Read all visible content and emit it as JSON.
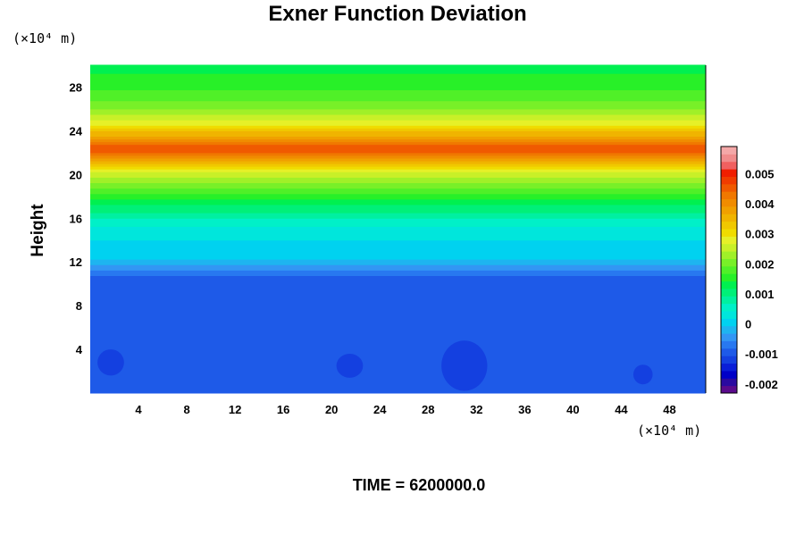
{
  "chart_data": {
    "type": "heatmap",
    "title": "Exner Function Deviation",
    "xlabel": "",
    "ylabel": "Height",
    "x_unit": "(×10⁴ m)",
    "y_unit": "(×10⁴ m)",
    "xlim": [
      0,
      51
    ],
    "ylim": [
      0,
      30
    ],
    "x_ticks": [
      "4",
      "8",
      "12",
      "16",
      "20",
      "24",
      "28",
      "32",
      "36",
      "40",
      "44",
      "48"
    ],
    "y_ticks": [
      "4",
      "8",
      "12",
      "16",
      "20",
      "24",
      "28"
    ],
    "colorbar": {
      "ticks": [
        "0.005",
        "0.004",
        "0.003",
        "0.002",
        "0.001",
        "0",
        "-0.001",
        "-0.002"
      ],
      "range": [
        -0.0023,
        0.0059
      ],
      "colors": [
        "#5a0a8c",
        "#2a0aa0",
        "#0000c8",
        "#0a1ed8",
        "#1440e0",
        "#1e5ae8",
        "#2878f0",
        "#3296f4",
        "#1eb4f0",
        "#00d2f0",
        "#00e6dc",
        "#00f0c8",
        "#00f0a0",
        "#00f078",
        "#00f050",
        "#28f028",
        "#50f028",
        "#78f028",
        "#a0f028",
        "#c8f028",
        "#e6f028",
        "#f0dc00",
        "#f0c800",
        "#f0b400",
        "#f0a000",
        "#f08c00",
        "#f07800",
        "#f05a00",
        "#f03c00",
        "#f01e00",
        "#f06060",
        "#f08c8c",
        "#f4a8a8"
      ]
    },
    "vertical_profile": [
      {
        "y": 0,
        "value": -0.001
      },
      {
        "y": 10.5,
        "value": -0.001
      },
      {
        "y": 11.5,
        "value": -0.0004
      },
      {
        "y": 12.5,
        "value": 0.0
      },
      {
        "y": 15,
        "value": 0.0003
      },
      {
        "y": 18,
        "value": 0.0015
      },
      {
        "y": 20,
        "value": 0.0025
      },
      {
        "y": 21.5,
        "value": 0.004
      },
      {
        "y": 22.5,
        "value": 0.0047
      },
      {
        "y": 23.5,
        "value": 0.0037
      },
      {
        "y": 25,
        "value": 0.0026
      },
      {
        "y": 27,
        "value": 0.0018
      },
      {
        "y": 30,
        "value": 0.0013
      }
    ],
    "blobs": [
      {
        "x": 1.7,
        "y": 2.8,
        "rx": 1.1,
        "ry": 1.2,
        "value": -0.0012
      },
      {
        "x": 21.5,
        "y": 2.5,
        "rx": 1.1,
        "ry": 1.1,
        "value": -0.0012
      },
      {
        "x": 31.0,
        "y": 2.5,
        "rx": 1.9,
        "ry": 2.3,
        "value": -0.0012
      },
      {
        "x": 45.8,
        "y": 1.7,
        "rx": 0.8,
        "ry": 0.9,
        "value": -0.0012
      }
    ]
  },
  "time_label": "TIME = 6200000.0"
}
